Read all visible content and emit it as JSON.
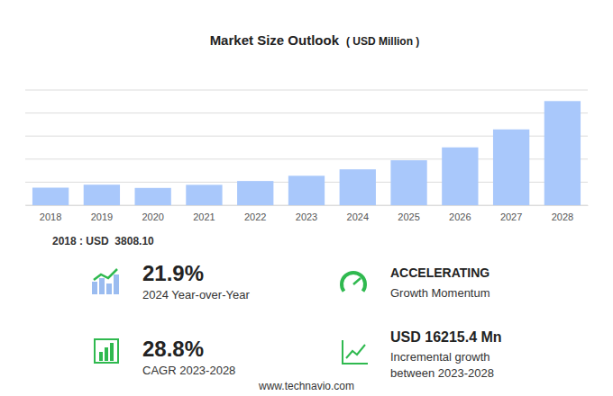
{
  "chart_data": {
    "type": "bar",
    "title": "Market Size Outlook",
    "subtitle": "( USD Million )",
    "categories": [
      "2018",
      "2019",
      "2020",
      "2021",
      "2022",
      "2023",
      "2024",
      "2025",
      "2026",
      "2027",
      "2028"
    ],
    "values": [
      3808.1,
      4450,
      3750,
      4420,
      5250,
      6384,
      7782,
      9750,
      12550,
      16450,
      22599.4
    ],
    "color": "#a9c8fb",
    "ylim": [
      0,
      25000
    ],
    "yticks": [
      0,
      5000,
      10000,
      15000,
      20000,
      25000
    ],
    "grid": true,
    "tick_labels": "x",
    "annotations": [
      "2018 : USD  3808.10"
    ],
    "stats": [
      {
        "value": "21.9%",
        "label": [
          "2024 Year-over-Year"
        ]
      },
      {
        "value": "ACCELERATING",
        "label": [
          "Growth Momentum"
        ]
      },
      {
        "value": "28.8%",
        "label": [
          "CAGR 2023-2028"
        ]
      },
      {
        "value": "USD 16215.4 Mn",
        "label": [
          "Incremental growth",
          "between 2023-2028"
        ]
      }
    ],
    "source": "www.technavio.com"
  }
}
